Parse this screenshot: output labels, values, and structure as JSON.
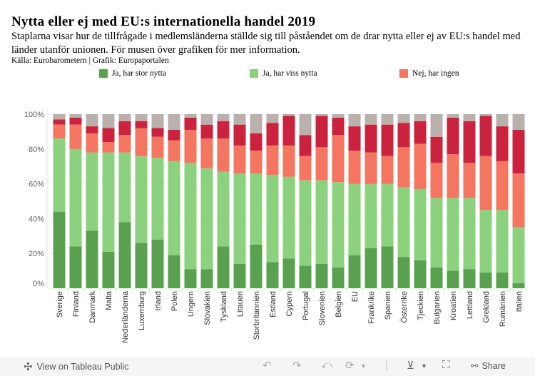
{
  "header": {
    "title": "Nytta eller ej med EU:s internationella handel 2019",
    "subtitle": "Staplarna visar hur de tillfrågade i medlemsländerna ställde sig till påståendet om de drar nytta eller ej av EU:s handel med länder utanför unionen. För musen över grafiken för mer information.",
    "source": "Källa: Eurobarometern | Grafik: Europaportalen"
  },
  "legend": [
    {
      "label": "Ja, har stor nytta",
      "color": "#59a14f"
    },
    {
      "label": "Ja, har viss nytta",
      "color": "#8cd17d"
    },
    {
      "label": "Nej, har ingen",
      "color": "#f47560"
    }
  ],
  "chart_data": {
    "type": "bar",
    "stacked": true,
    "normalized": true,
    "ylim": [
      0,
      100
    ],
    "yticks": [
      "0%",
      "20%",
      "40%",
      "60%",
      "80%",
      "100%"
    ],
    "grid": true,
    "legend_position": "top",
    "categories": [
      "Sverige",
      "Finland",
      "Danmark",
      "Malta",
      "Nederländerna",
      "Luxemburg",
      "Irland",
      "Polen",
      "Ungern",
      "Slovakien",
      "Tyskland",
      "Litauen",
      "Storbritannien",
      "Estland",
      "Cypern",
      "Portugal",
      "Slovenien",
      "Belgien",
      "EU",
      "Frankrike",
      "Spanien",
      "Österrike",
      "Tjeckien",
      "Bulgarien",
      "Kroatien",
      "Lettland",
      "Grekland",
      "Rumänien",
      "Italien"
    ],
    "series": [
      {
        "name": "Ja, har stor nytta",
        "color": "#59a14f",
        "values": [
          44,
          24,
          33,
          21,
          38,
          26,
          28,
          19,
          11,
          11,
          24,
          14,
          25,
          15,
          17,
          13,
          14,
          12,
          19,
          23,
          24,
          18,
          16,
          12,
          10,
          11,
          9,
          9,
          3
        ]
      },
      {
        "name": "Ja, har viss nytta",
        "color": "#8cd17d",
        "values": [
          42,
          56,
          45,
          57,
          40,
          50,
          47,
          54,
          61,
          58,
          43,
          52,
          41,
          50,
          47,
          49,
          48,
          49,
          41,
          37,
          36,
          40,
          41,
          40,
          42,
          41,
          36,
          36,
          32
        ]
      },
      {
        "name": "Nej, har ingen",
        "color": "#f47560",
        "values": [
          8,
          14,
          11,
          6,
          10,
          16,
          12,
          12,
          19,
          17,
          19,
          16,
          13,
          17,
          18,
          14,
          19,
          27,
          19,
          18,
          16,
          23,
          26,
          20,
          25,
          20,
          31,
          28,
          31
        ]
      },
      {
        "color": "#cb223e",
        "values": [
          3,
          4,
          4,
          8,
          8,
          4,
          5,
          6,
          7,
          8,
          10,
          12,
          10,
          13,
          17,
          12,
          18,
          10,
          14,
          16,
          18,
          14,
          13,
          15,
          21,
          24,
          23,
          20,
          25
        ]
      },
      {
        "color": "#bab0ac",
        "values": [
          3,
          2,
          7,
          8,
          4,
          4,
          8,
          9,
          2,
          6,
          4,
          6,
          11,
          5,
          1,
          12,
          1,
          2,
          7,
          6,
          6,
          5,
          4,
          13,
          2,
          4,
          1,
          7,
          9
        ]
      }
    ]
  },
  "footer": {
    "view_label": "View on Tableau Public",
    "share_label": "Share"
  }
}
